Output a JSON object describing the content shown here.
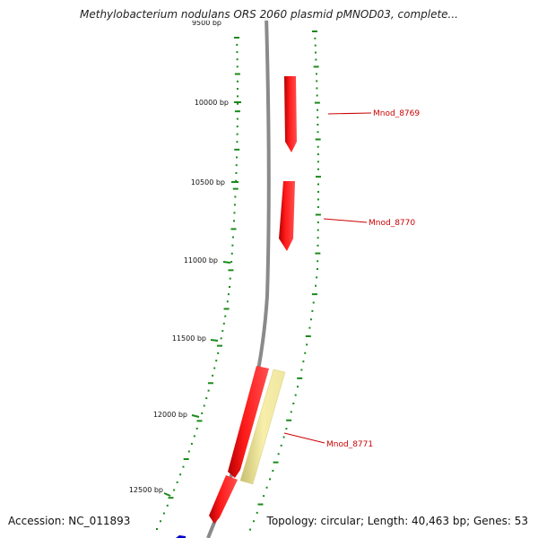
{
  "title": "Methylobacterium nodulans ORS 2060 plasmid pMNOD03, complete...",
  "footer": {
    "accession": "Accession: NC_011893",
    "topology": "Topology: circular; Length: 40,463 bp; Genes: 53"
  },
  "colors": {
    "backbone": "#8a8a8a",
    "ticks": "#1a8a1a",
    "gene_forward": "#ff0000",
    "gene_highlight": "#f3e9a0",
    "gene_other": "#0000cc",
    "label": "#cc0000"
  },
  "ruler": [
    {
      "label": "9500 bp"
    },
    {
      "label": "10000 bp"
    },
    {
      "label": "10500 bp"
    },
    {
      "label": "11000 bp"
    },
    {
      "label": "11500 bp"
    },
    {
      "label": "12000 bp"
    },
    {
      "label": "12500 bp"
    }
  ],
  "genes": [
    {
      "name": "Mnod_8769",
      "color": "red"
    },
    {
      "name": "Mnod_8770",
      "color": "red"
    },
    {
      "name": "Mnod_8771",
      "color": "red"
    },
    {
      "name": "",
      "color": "pale-yellow"
    },
    {
      "name": "",
      "color": "red"
    },
    {
      "name": "",
      "color": "blue"
    }
  ]
}
